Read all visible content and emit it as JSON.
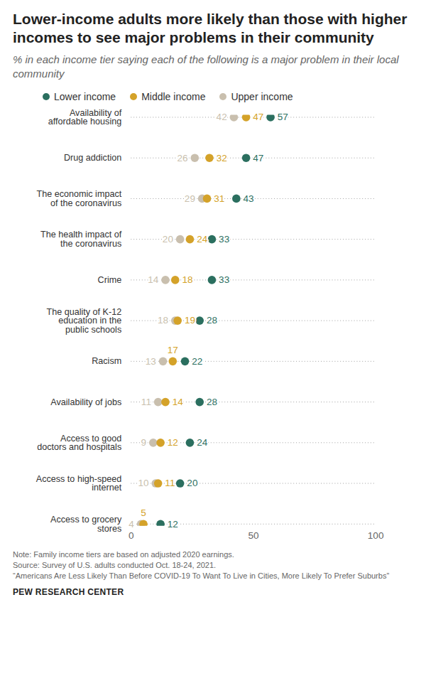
{
  "chart_data": {
    "type": "dot",
    "orientation": "horizontal",
    "title": "Lower-income adults more likely than those with higher incomes to see major problems in their community",
    "subtitle": "% in each income tier saying each of the following is a major problem in their local community",
    "categories": [
      "Availability of\naffordable housing",
      "Drug addiction",
      "The economic impact\nof the coronavirus",
      "The health impact of\nthe coronavirus",
      "Crime",
      "The quality of K-12\neducation in the\npublic schools",
      "Racism",
      "Availability of jobs",
      "Access to good\ndoctors and hospitals",
      "Access to high-speed\ninternet",
      "Access to grocery\nstores"
    ],
    "series": [
      {
        "name": "Lower income",
        "color": "#2b6f5f",
        "values": [
          57,
          47,
          43,
          33,
          33,
          28,
          22,
          28,
          24,
          20,
          12
        ]
      },
      {
        "name": "Middle income",
        "color": "#d4a229",
        "values": [
          47,
          32,
          31,
          24,
          18,
          19,
          17,
          14,
          12,
          11,
          5
        ]
      },
      {
        "name": "Upper income",
        "color": "#c9bfae",
        "values": [
          42,
          26,
          29,
          20,
          14,
          18,
          13,
          11,
          9,
          10,
          4
        ]
      }
    ],
    "xlim": [
      0,
      100
    ],
    "xticks": [
      0,
      50,
      100
    ],
    "data_labels": true,
    "legend": "top",
    "notes": [
      "Note: Family income tiers are based on adjusted 2020 earnings.",
      "Source: Survey of U.S. adults conducted Oct. 18-24, 2021.",
      "“Americans Are Less Likely Than Before COVID-19 To Want To Live in Cities, More Likely To Prefer Suburbs”"
    ],
    "credit": "PEW RESEARCH CENTER"
  }
}
